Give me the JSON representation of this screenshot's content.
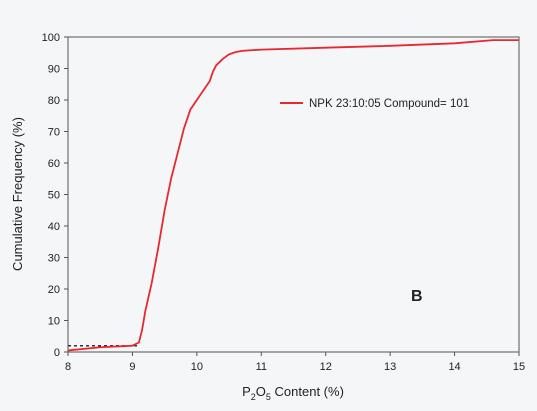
{
  "chart_data": {
    "type": "line",
    "xlabel_main": "P",
    "xlabel_sub1": "2",
    "xlabel_mid": "O",
    "xlabel_sub2": "5",
    "xlabel_tail": " Content (%)",
    "ylabel": "Cumulative Frequency (%)",
    "xlim": [
      8,
      15
    ],
    "ylim": [
      0,
      100
    ],
    "x_ticks": [
      "8",
      "9",
      "10",
      "11",
      "12",
      "13",
      "14",
      "15"
    ],
    "y_ticks": [
      "0",
      "10",
      "20",
      "30",
      "40",
      "50",
      "60",
      "70",
      "80",
      "90",
      "100"
    ],
    "grid": false,
    "legend_position": "upper-right",
    "annotation": "B",
    "series": [
      {
        "name": "NPK 23:10:05 Compound= 101",
        "color": "#e8282e",
        "x": [
          8.0,
          8.5,
          9.0,
          9.1,
          9.15,
          9.2,
          9.3,
          9.4,
          9.5,
          9.6,
          9.7,
          9.8,
          9.9,
          10.0,
          10.1,
          10.2,
          10.25,
          10.3,
          10.4,
          10.5,
          10.6,
          10.7,
          11.0,
          12.0,
          13.0,
          14.0,
          14.6,
          15.0
        ],
        "y": [
          0.5,
          1.5,
          2.0,
          3.0,
          7.0,
          13.0,
          22.0,
          33.0,
          45.0,
          55.0,
          63.0,
          71.0,
          77.0,
          80.0,
          83.0,
          86.0,
          89.0,
          91.0,
          93.0,
          94.5,
          95.2,
          95.6,
          96.0,
          96.6,
          97.2,
          98.0,
          99.0,
          99.0
        ]
      }
    ],
    "reference_line": {
      "style": "dotted",
      "color": "#333333",
      "x": [
        8.0,
        9.1
      ],
      "y": [
        2.0,
        2.0
      ]
    }
  }
}
